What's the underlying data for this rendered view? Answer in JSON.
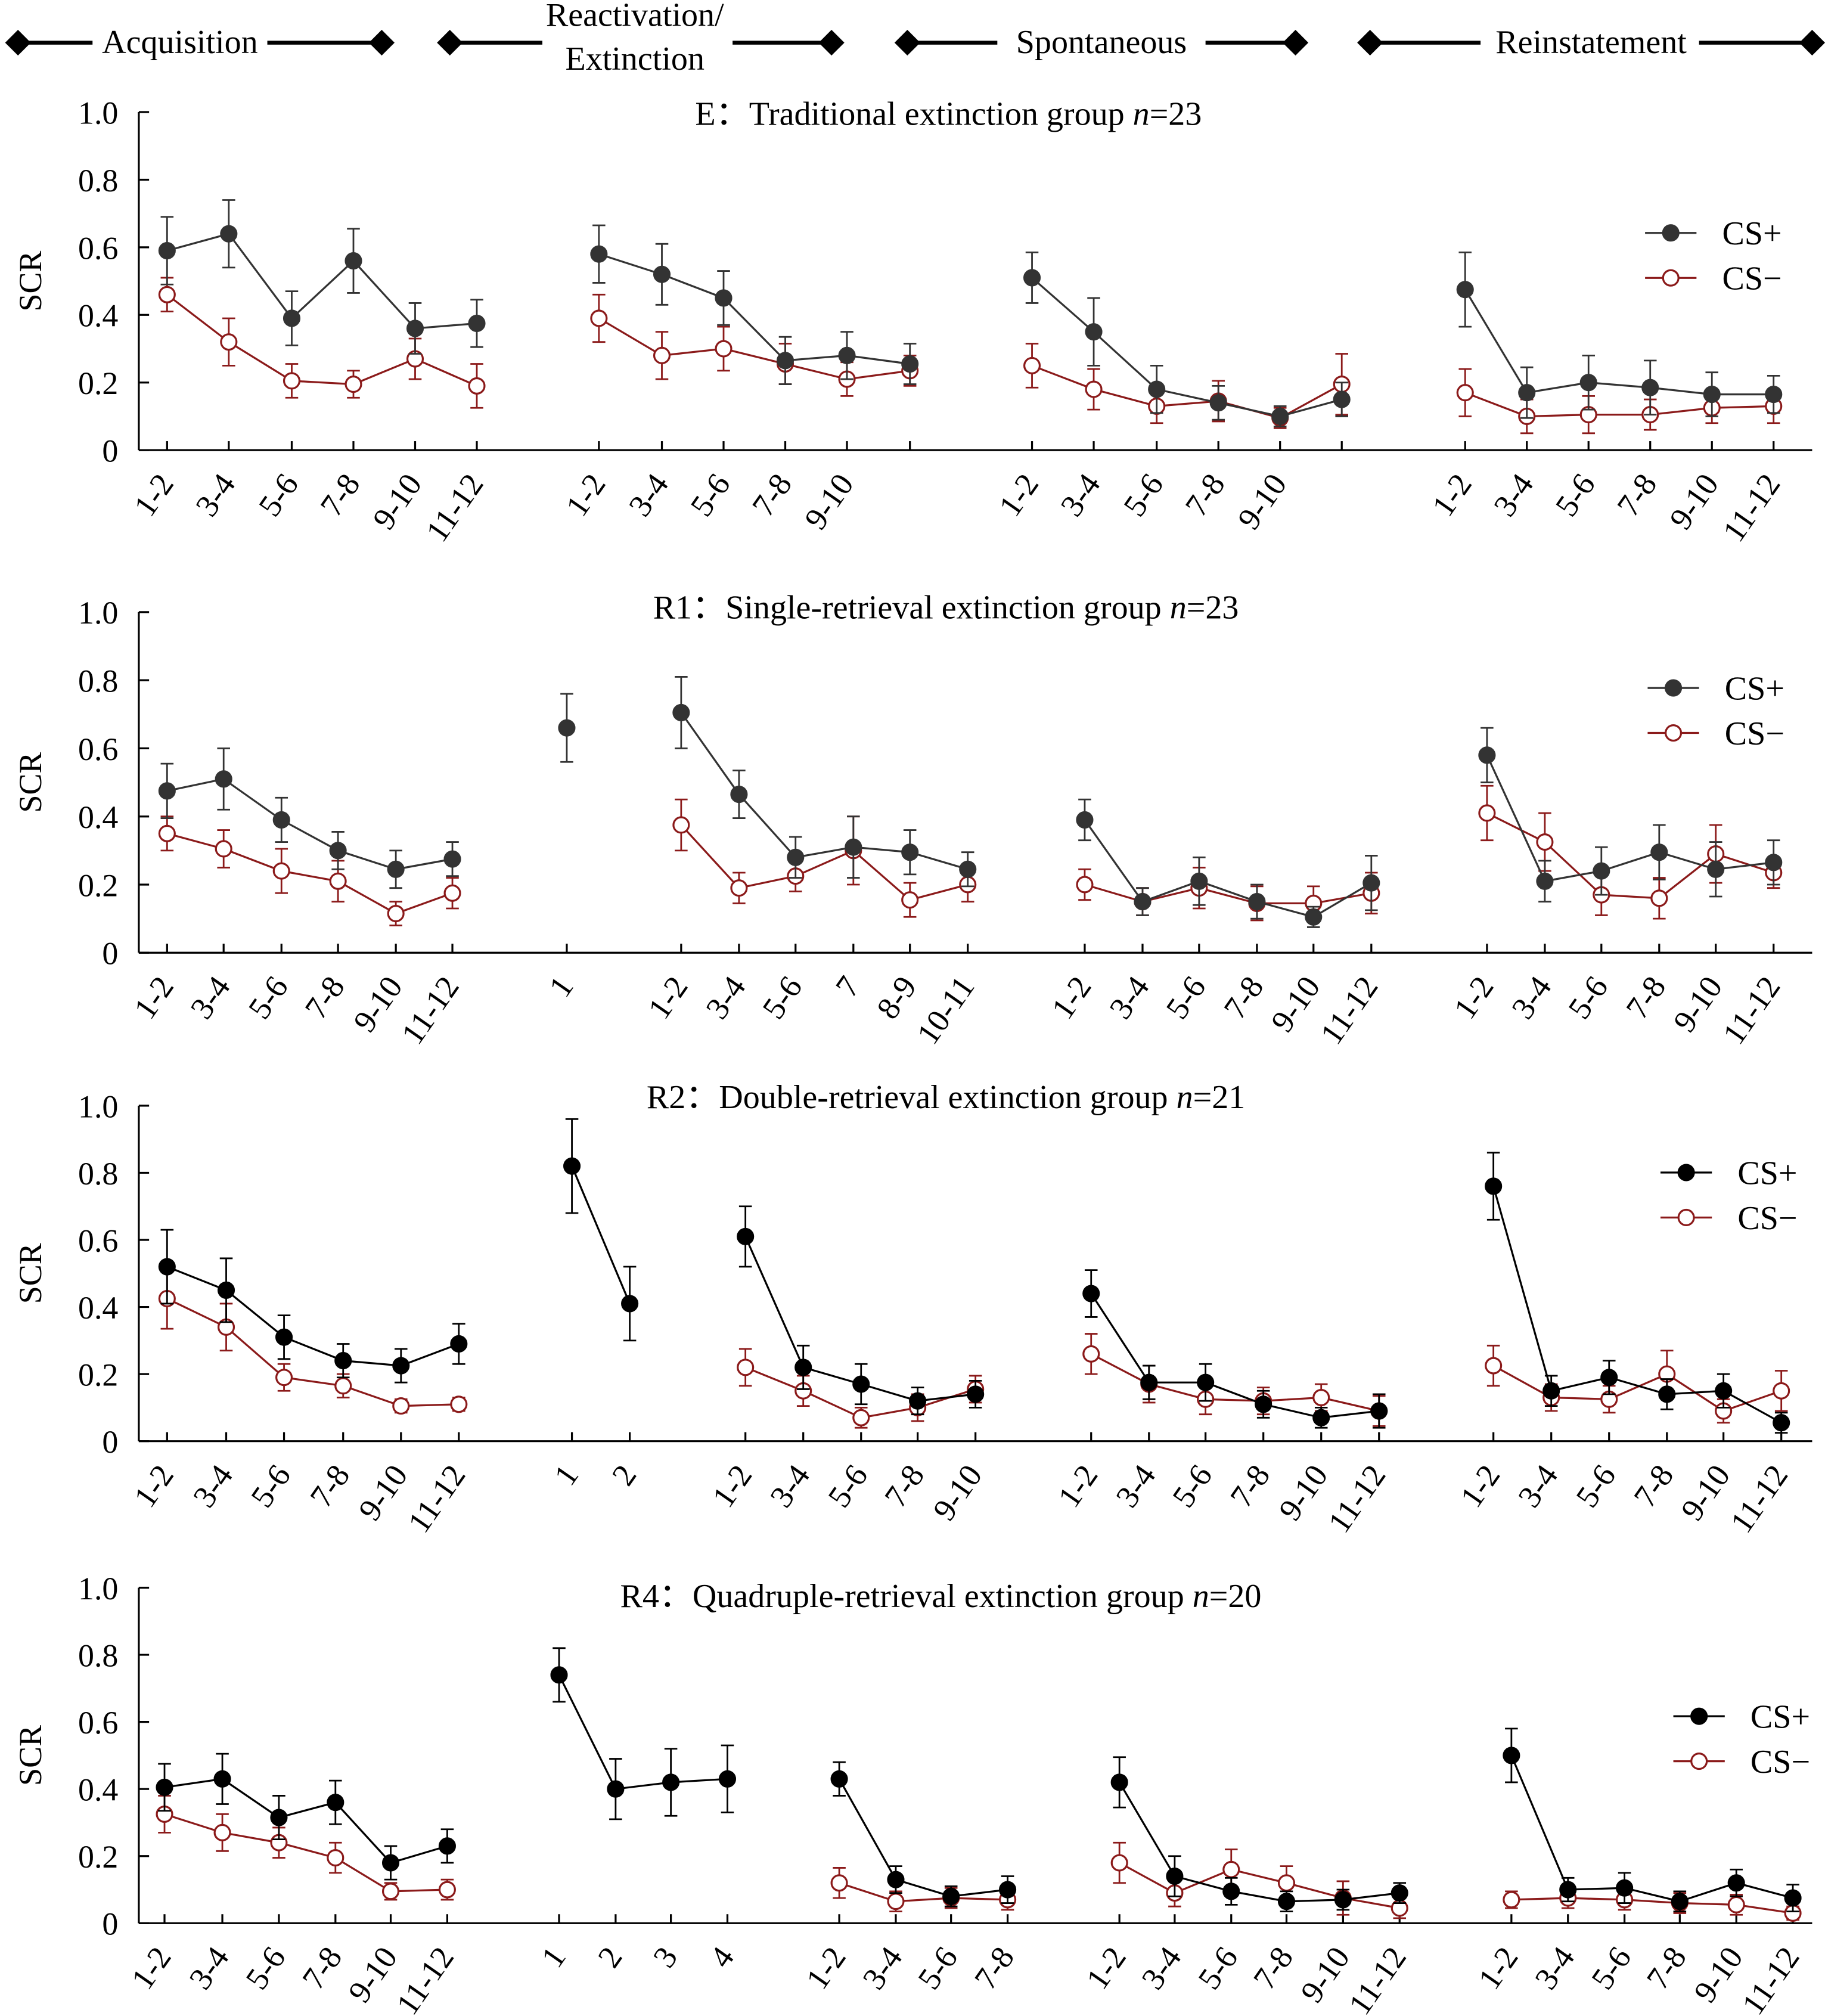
{
  "header": {
    "phases": [
      "Acquisition",
      "Reactivation/",
      "Extinction",
      "Spontaneous",
      "Reinstatement"
    ]
  },
  "colors": {
    "cs_plus_light": "#333333",
    "cs_plus_dark": "#000000",
    "cs_minus": "#8b1a1a"
  },
  "chart_data": [
    {
      "type": "line",
      "title_prefix": "E：Traditional extinction group ",
      "title_n": "n",
      "title_suffix": "=23",
      "ylabel": "SCR",
      "ylim": [
        0,
        1.0
      ],
      "yticks": [
        "0",
        "0.2",
        "0.4",
        "0.6",
        "0.8",
        "1.0"
      ],
      "legend": [
        "CS+",
        "CS−"
      ],
      "legend_position": "right",
      "phases": [
        {
          "categories": [
            "1-2",
            "3-4",
            "5-6",
            "7-8",
            "9-10",
            "11-12"
          ],
          "cs_plus": [
            0.59,
            0.64,
            0.39,
            0.56,
            0.36,
            0.375
          ],
          "cs_plus_err": [
            0.1,
            0.1,
            0.08,
            0.095,
            0.075,
            0.07
          ],
          "cs_minus": [
            0.46,
            0.32,
            0.205,
            0.195,
            0.27,
            0.19
          ],
          "cs_minus_err": [
            0.05,
            0.07,
            0.05,
            0.04,
            0.06,
            0.065
          ]
        },
        {
          "categories": [
            "1-2",
            "3-4",
            "5-6",
            "7-8",
            "9-10",
            ""
          ],
          "cs_plus": [
            0.58,
            0.52,
            0.45,
            0.265,
            0.28,
            0.255
          ],
          "cs_plus_err": [
            0.085,
            0.09,
            0.08,
            0.07,
            0.07,
            0.06
          ],
          "cs_minus": [
            0.39,
            0.28,
            0.3,
            0.255,
            0.21,
            0.235
          ],
          "cs_minus_err": [
            0.07,
            0.07,
            0.065,
            0.06,
            0.05,
            0.045
          ]
        },
        {
          "categories": [
            "1-2",
            "3-4",
            "5-6",
            "7-8",
            "9-10",
            ""
          ],
          "cs_plus": [
            0.51,
            0.35,
            0.18,
            0.14,
            0.1,
            0.15
          ],
          "cs_plus_err": [
            0.075,
            0.1,
            0.07,
            0.05,
            0.03,
            0.05
          ],
          "cs_minus": [
            0.25,
            0.18,
            0.13,
            0.145,
            0.095,
            0.195
          ],
          "cs_minus_err": [
            0.065,
            0.06,
            0.05,
            0.06,
            0.03,
            0.09
          ]
        },
        {
          "categories": [
            "1-2",
            "3-4",
            "5-6",
            "7-8",
            "9-10",
            "11-12"
          ],
          "cs_plus": [
            0.475,
            0.17,
            0.2,
            0.185,
            0.165,
            0.165
          ],
          "cs_plus_err": [
            0.11,
            0.075,
            0.08,
            0.08,
            0.065,
            0.055
          ],
          "cs_minus": [
            0.17,
            0.1,
            0.105,
            0.105,
            0.125,
            0.13
          ],
          "cs_minus_err": [
            0.07,
            0.05,
            0.055,
            0.045,
            0.045,
            0.05
          ]
        }
      ]
    },
    {
      "type": "line",
      "title_prefix": "R1：Single-retrieval extinction group ",
      "title_n": "n",
      "title_suffix": "=23",
      "ylabel": "SCR",
      "ylim": [
        0,
        1.0
      ],
      "yticks": [
        "0",
        "0.2",
        "0.4",
        "0.6",
        "0.8",
        "1.0"
      ],
      "legend": [
        "CS+",
        "CS−"
      ],
      "legend_position": "right",
      "phases": [
        {
          "categories": [
            "1-2",
            "3-4",
            "5-6",
            "7-8",
            "9-10",
            "11-12"
          ],
          "cs_plus": [
            0.475,
            0.51,
            0.39,
            0.3,
            0.245,
            0.275
          ],
          "cs_plus_err": [
            0.08,
            0.09,
            0.065,
            0.055,
            0.055,
            0.05
          ],
          "cs_minus": [
            0.35,
            0.305,
            0.24,
            0.21,
            0.115,
            0.175
          ],
          "cs_minus_err": [
            0.05,
            0.055,
            0.065,
            0.06,
            0.035,
            0.045
          ]
        },
        {
          "categories": [
            "1"
          ],
          "cs_plus": [
            0.66
          ],
          "cs_plus_err": [
            0.1
          ],
          "cs_minus": [
            null
          ],
          "cs_minus_err": [
            null
          ]
        },
        {
          "categories": [
            "1-2",
            "3-4",
            "5-6",
            "7",
            "8-9",
            "10-11"
          ],
          "cs_plus": [
            0.705,
            0.465,
            0.28,
            0.31,
            0.295,
            0.245
          ],
          "cs_plus_err": [
            0.105,
            0.07,
            0.06,
            0.09,
            0.065,
            0.05
          ],
          "cs_minus": [
            0.375,
            0.19,
            0.225,
            0.3,
            0.155,
            0.2
          ],
          "cs_minus_err": [
            0.075,
            0.045,
            0.045,
            0.1,
            0.05,
            0.05
          ]
        },
        {
          "categories": [
            "1-2",
            "3-4",
            "5-6",
            "7-8",
            "9-10",
            "11-12"
          ],
          "cs_plus": [
            0.39,
            0.15,
            0.21,
            0.15,
            0.105,
            0.205
          ],
          "cs_plus_err": [
            0.06,
            0.04,
            0.07,
            0.05,
            0.03,
            0.08
          ],
          "cs_minus": [
            0.2,
            0.15,
            0.19,
            0.145,
            0.145,
            0.175
          ],
          "cs_minus_err": [
            0.045,
            0.04,
            0.06,
            0.05,
            0.05,
            0.06
          ]
        },
        {
          "categories": [
            "1-2",
            "3-4",
            "5-6",
            "7-8",
            "9-10",
            "11-12"
          ],
          "cs_plus": [
            0.58,
            0.21,
            0.24,
            0.295,
            0.245,
            0.265
          ],
          "cs_plus_err": [
            0.08,
            0.06,
            0.07,
            0.08,
            0.08,
            0.065
          ],
          "cs_minus": [
            0.41,
            0.325,
            0.17,
            0.16,
            0.29,
            0.235
          ],
          "cs_minus_err": [
            0.08,
            0.085,
            0.06,
            0.06,
            0.085,
            0.045
          ]
        }
      ]
    },
    {
      "type": "line",
      "title_prefix": "R2：Double-retrieval extinction group ",
      "title_n": "n",
      "title_suffix": "=21",
      "ylabel": "SCR",
      "ylim": [
        0,
        1.0
      ],
      "yticks": [
        "0",
        "0.2",
        "0.4",
        "0.6",
        "0.8",
        "1.0"
      ],
      "legend": [
        "CS+",
        "CS−"
      ],
      "legend_position": "right",
      "phases": [
        {
          "categories": [
            "1-2",
            "3-4",
            "5-6",
            "7-8",
            "9-10",
            "11-12"
          ],
          "cs_plus": [
            0.52,
            0.45,
            0.31,
            0.24,
            0.225,
            0.29
          ],
          "cs_plus_err": [
            0.11,
            0.095,
            0.065,
            0.05,
            0.05,
            0.06
          ],
          "cs_minus": [
            0.425,
            0.34,
            0.19,
            0.165,
            0.105,
            0.11
          ],
          "cs_minus_err": [
            0.09,
            0.07,
            0.04,
            0.035,
            0.02,
            0.02
          ]
        },
        {
          "categories": [
            "1",
            "2"
          ],
          "cs_plus": [
            0.82,
            0.41
          ],
          "cs_plus_err": [
            0.14,
            0.11
          ],
          "cs_minus": [
            null,
            null
          ],
          "cs_minus_err": [
            null,
            null
          ]
        },
        {
          "categories": [
            "1-2",
            "3-4",
            "5-6",
            "7-8",
            "9-10"
          ],
          "cs_plus": [
            0.61,
            0.22,
            0.17,
            0.12,
            0.14
          ],
          "cs_plus_err": [
            0.09,
            0.065,
            0.06,
            0.04,
            0.04
          ],
          "cs_minus": [
            0.22,
            0.15,
            0.07,
            0.1,
            0.155
          ],
          "cs_minus_err": [
            0.055,
            0.045,
            0.03,
            0.04,
            0.04
          ]
        },
        {
          "categories": [
            "1-2",
            "3-4",
            "5-6",
            "7-8",
            "9-10",
            "11-12"
          ],
          "cs_plus": [
            0.44,
            0.175,
            0.175,
            0.11,
            0.07,
            0.09
          ],
          "cs_plus_err": [
            0.07,
            0.05,
            0.055,
            0.04,
            0.03,
            0.05
          ],
          "cs_minus": [
            0.26,
            0.17,
            0.125,
            0.12,
            0.13,
            0.09
          ],
          "cs_minus_err": [
            0.06,
            0.055,
            0.045,
            0.04,
            0.04,
            0.045
          ]
        },
        {
          "categories": [
            "1-2",
            "3-4",
            "5-6",
            "7-8",
            "9-10",
            "11-12"
          ],
          "cs_plus": [
            0.76,
            0.15,
            0.19,
            0.14,
            0.15,
            0.055
          ],
          "cs_plus_err": [
            0.1,
            0.045,
            0.05,
            0.045,
            0.05,
            0.03
          ],
          "cs_minus": [
            0.225,
            0.13,
            0.125,
            0.2,
            0.09,
            0.15
          ],
          "cs_minus_err": [
            0.06,
            0.04,
            0.04,
            0.07,
            0.035,
            0.06
          ]
        }
      ]
    },
    {
      "type": "line",
      "title_prefix": "R4：Quadruple-retrieval extinction group ",
      "title_n": "n",
      "title_suffix": "=20",
      "ylabel": "SCR",
      "ylim": [
        0,
        1.0
      ],
      "yticks": [
        "0",
        "0.2",
        "0.4",
        "0.6",
        "0.8",
        "1.0"
      ],
      "legend": [
        "CS+",
        "CS−"
      ],
      "legend_position": "right",
      "phases": [
        {
          "categories": [
            "1-2",
            "3-4",
            "5-6",
            "7-8",
            "9-10",
            "11-12"
          ],
          "cs_plus": [
            0.405,
            0.43,
            0.315,
            0.36,
            0.18,
            0.23
          ],
          "cs_plus_err": [
            0.07,
            0.075,
            0.065,
            0.065,
            0.05,
            0.05
          ],
          "cs_minus": [
            0.325,
            0.27,
            0.24,
            0.195,
            0.095,
            0.1
          ],
          "cs_minus_err": [
            0.055,
            0.055,
            0.045,
            0.045,
            0.025,
            0.03
          ]
        },
        {
          "categories": [
            "1",
            "2",
            "3",
            "4"
          ],
          "cs_plus": [
            0.74,
            0.4,
            0.42,
            0.43
          ],
          "cs_plus_err": [
            0.08,
            0.09,
            0.1,
            0.1
          ],
          "cs_minus": [
            null,
            null,
            null,
            null
          ],
          "cs_minus_err": [
            null,
            null,
            null,
            null
          ]
        },
        {
          "categories": [
            "1-2",
            "3-4",
            "5-6",
            "7-8"
          ],
          "cs_plus": [
            0.43,
            0.13,
            0.08,
            0.1
          ],
          "cs_plus_err": [
            0.05,
            0.04,
            0.03,
            0.04
          ],
          "cs_minus": [
            0.12,
            0.065,
            0.075,
            0.07
          ],
          "cs_minus_err": [
            0.045,
            0.03,
            0.03,
            0.03
          ]
        },
        {
          "categories": [
            "1-2",
            "3-4",
            "5-6",
            "7-8",
            "9-10",
            "11-12"
          ],
          "cs_plus": [
            0.42,
            0.14,
            0.095,
            0.065,
            0.07,
            0.09
          ],
          "cs_plus_err": [
            0.075,
            0.06,
            0.04,
            0.03,
            0.03,
            0.03
          ],
          "cs_minus": [
            0.18,
            0.09,
            0.16,
            0.12,
            0.075,
            0.045
          ],
          "cs_minus_err": [
            0.06,
            0.04,
            0.06,
            0.05,
            0.05,
            0.03
          ]
        },
        {
          "categories": [
            "1-2",
            "3-4",
            "5-6",
            "7-8",
            "9-10",
            "11-12"
          ],
          "cs_plus": [
            0.5,
            0.1,
            0.105,
            0.065,
            0.12,
            0.075
          ],
          "cs_plus_err": [
            0.08,
            0.035,
            0.045,
            0.03,
            0.04,
            0.04
          ],
          "cs_minus": [
            0.07,
            0.075,
            0.07,
            0.06,
            0.055,
            0.03
          ],
          "cs_minus_err": [
            0.025,
            0.03,
            0.03,
            0.03,
            0.03,
            0.02
          ]
        }
      ]
    }
  ]
}
